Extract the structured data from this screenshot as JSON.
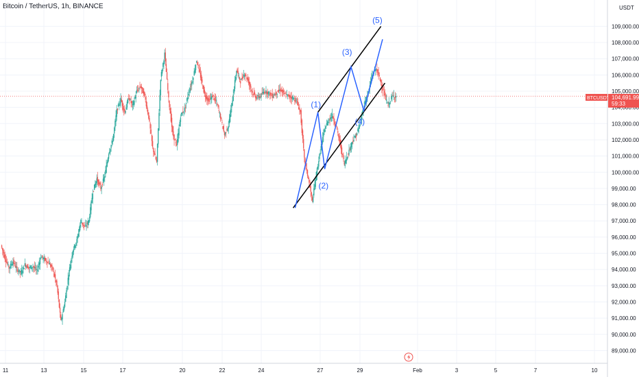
{
  "header": {
    "symbol_title": "Bitcoin / TetherUS, 1h, BINANCE"
  },
  "axis": {
    "currency_label": "USDT"
  },
  "price_badge": {
    "symbol": "BTCUSDT",
    "price": "104,691.99",
    "countdown": "59:33"
  },
  "colors": {
    "up": "#26a69a",
    "down": "#ef5350",
    "wave": "#2962ff",
    "channel": "#000000",
    "grid": "#f0f3fa",
    "badge": "#ef5350"
  },
  "events_icon": "lightning-icon",
  "chart_data": {
    "type": "candlestick",
    "x_ticks": [
      "11",
      "13",
      "15",
      "17",
      "20",
      "22",
      "24",
      "27",
      "29",
      "Feb",
      "3",
      "5",
      "7",
      "10"
    ],
    "y_ticks": [
      "109,000.00",
      "108,000.00",
      "107,000.00",
      "106,000.00",
      "105,000.00",
      "104,000.00",
      "103,000.00",
      "102,000.00",
      "101,000.00",
      "100,000.00",
      "99,000.00",
      "98,000.00",
      "97,000.00",
      "96,000.00",
      "95,000.00",
      "94,000.00",
      "93,000.00",
      "92,000.00",
      "91,000.00",
      "90,000.00",
      "89,000.00"
    ],
    "ylim": [
      88300,
      110200
    ],
    "current_price": 104691.99,
    "price_path": [
      [
        0,
        95500
      ],
      [
        1,
        94700
      ],
      [
        2,
        94100
      ],
      [
        3,
        94500
      ],
      [
        4,
        94000
      ],
      [
        5,
        93800
      ],
      [
        6,
        94300
      ],
      [
        7,
        94100
      ],
      [
        8,
        94200
      ],
      [
        9,
        93900
      ],
      [
        10,
        94800
      ],
      [
        11,
        94600
      ],
      [
        12,
        94400
      ],
      [
        13,
        94000
      ],
      [
        14,
        93000
      ],
      [
        15,
        90800
      ],
      [
        16,
        92000
      ],
      [
        17,
        93800
      ],
      [
        18,
        95200
      ],
      [
        19,
        95800
      ],
      [
        20,
        97000
      ],
      [
        21,
        96600
      ],
      [
        22,
        97000
      ],
      [
        23,
        98800
      ],
      [
        24,
        99600
      ],
      [
        25,
        99000
      ],
      [
        26,
        99800
      ],
      [
        27,
        101200
      ],
      [
        28,
        102000
      ],
      [
        29,
        103800
      ],
      [
        30,
        104500
      ],
      [
        31,
        103700
      ],
      [
        32,
        104600
      ],
      [
        33,
        104100
      ],
      [
        34,
        105000
      ],
      [
        35,
        105300
      ],
      [
        36,
        104700
      ],
      [
        37,
        103400
      ],
      [
        38,
        101500
      ],
      [
        39,
        100600
      ],
      [
        40,
        105800
      ],
      [
        41,
        107300
      ],
      [
        42,
        104500
      ],
      [
        43,
        102400
      ],
      [
        44,
        101600
      ],
      [
        45,
        103500
      ],
      [
        46,
        103900
      ],
      [
        47,
        104900
      ],
      [
        48,
        105700
      ],
      [
        49,
        106900
      ],
      [
        50,
        105900
      ],
      [
        51,
        104800
      ],
      [
        52,
        104400
      ],
      [
        53,
        104700
      ],
      [
        54,
        104300
      ],
      [
        55,
        103400
      ],
      [
        56,
        102300
      ],
      [
        57,
        102900
      ],
      [
        58,
        104500
      ],
      [
        59,
        106300
      ],
      [
        60,
        105600
      ],
      [
        61,
        106100
      ],
      [
        62,
        105600
      ],
      [
        63,
        104900
      ],
      [
        64,
        104600
      ],
      [
        65,
        104700
      ],
      [
        66,
        105000
      ],
      [
        67,
        104900
      ],
      [
        68,
        104700
      ],
      [
        69,
        104900
      ],
      [
        70,
        105100
      ],
      [
        71,
        104800
      ],
      [
        72,
        104700
      ],
      [
        73,
        104600
      ],
      [
        74,
        104400
      ],
      [
        75,
        103700
      ],
      [
        76,
        100800
      ],
      [
        77,
        99600
      ],
      [
        78,
        98200
      ],
      [
        79,
        99900
      ],
      [
        80,
        101300
      ],
      [
        81,
        102600
      ],
      [
        82,
        103200
      ],
      [
        83,
        103500
      ],
      [
        84,
        102800
      ],
      [
        85,
        101700
      ],
      [
        86,
        100500
      ],
      [
        87,
        101200
      ],
      [
        88,
        101900
      ],
      [
        89,
        102300
      ],
      [
        90,
        103000
      ],
      [
        91,
        104200
      ],
      [
        92,
        104900
      ],
      [
        93,
        106000
      ],
      [
        94,
        106400
      ],
      [
        95,
        105700
      ],
      [
        96,
        104800
      ],
      [
        97,
        104100
      ],
      [
        98,
        104700
      ],
      [
        99,
        104692
      ]
    ],
    "wave_labels": [
      {
        "text": "(1)",
        "x": 78.8,
        "y": 104000
      },
      {
        "text": "(2)",
        "x": 80.7,
        "y": 99000
      },
      {
        "text": "(3)",
        "x": 86.6,
        "y": 107250
      },
      {
        "text": "(4)",
        "x": 89.8,
        "y": 102950
      },
      {
        "text": "(5)",
        "x": 94.2,
        "y": 109200
      }
    ],
    "wave_path": [
      [
        73.6,
        97800
      ],
      [
        79.3,
        103700
      ],
      [
        81.0,
        100200
      ],
      [
        87.6,
        106500
      ],
      [
        90.8,
        103800
      ],
      [
        95.5,
        108200
      ]
    ],
    "channel_upper": [
      [
        79.3,
        103700
      ],
      [
        95.1,
        109000
      ]
    ],
    "channel_lower": [
      [
        73.1,
        97800
      ],
      [
        96.1,
        105500
      ]
    ]
  }
}
